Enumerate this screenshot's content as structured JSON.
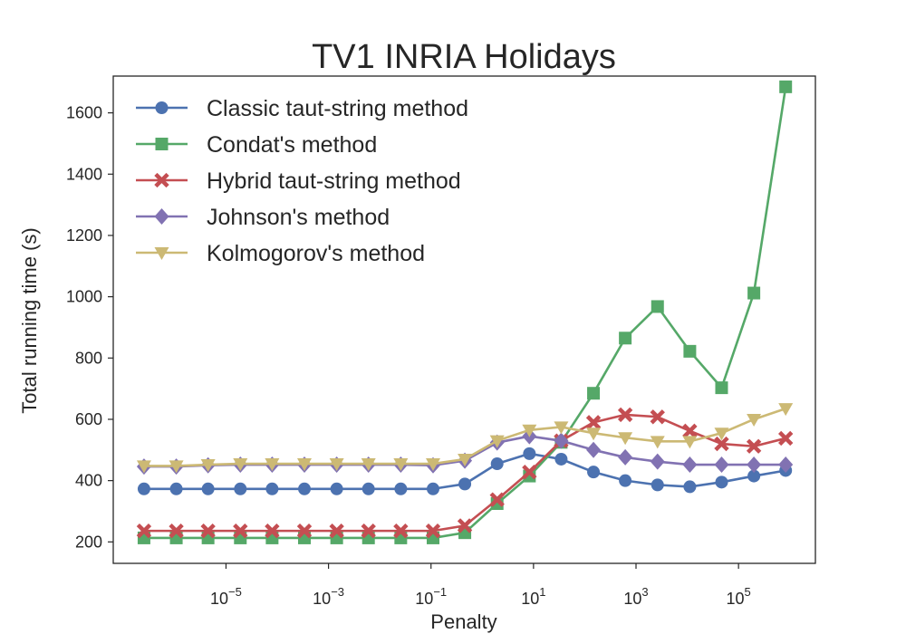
{
  "chart_data": {
    "type": "line",
    "title": "TV1 INRIA Holidays",
    "xlabel": "Penalty",
    "ylabel": "Total running time (s)",
    "xscale": "log",
    "xlim_log10": [
      -7.2,
      6.5
    ],
    "ylim": [
      130,
      1720
    ],
    "yticks": [
      200,
      400,
      600,
      800,
      1000,
      1200,
      1400,
      1600
    ],
    "xticks": [
      {
        "base": "10",
        "exp": "−5",
        "log10": -5
      },
      {
        "base": "10",
        "exp": "−3",
        "log10": -3
      },
      {
        "base": "10",
        "exp": "−1",
        "log10": -1
      },
      {
        "base": "10",
        "exp": "1",
        "log10": 1
      },
      {
        "base": "10",
        "exp": "3",
        "log10": 3
      },
      {
        "base": "10",
        "exp": "5",
        "log10": 5
      }
    ],
    "legend_position": "top-left",
    "x_log10": [
      -6.6,
      -5.97,
      -5.35,
      -4.72,
      -4.1,
      -3.47,
      -2.84,
      -2.22,
      -1.59,
      -0.96,
      -0.34,
      0.29,
      0.92,
      1.54,
      2.17,
      2.79,
      3.42,
      4.05,
      4.67,
      5.3,
      5.92
    ],
    "series": [
      {
        "name": "Classic taut-string method",
        "color": "#4c72b0",
        "marker": "circle",
        "values": [
          373,
          373,
          373,
          373,
          373,
          373,
          373,
          373,
          373,
          373,
          389,
          455,
          488,
          470,
          428,
          400,
          386,
          380,
          395,
          415,
          433
        ]
      },
      {
        "name": "Condat's method",
        "color": "#55a868",
        "marker": "square",
        "values": [
          213,
          213,
          213,
          213,
          213,
          213,
          213,
          213,
          213,
          213,
          230,
          325,
          415,
          525,
          685,
          865,
          968,
          822,
          703,
          1012,
          1685
        ]
      },
      {
        "name": "Hybrid taut-string method",
        "color": "#c44e52",
        "marker": "x",
        "values": [
          236,
          236,
          236,
          236,
          236,
          236,
          236,
          236,
          236,
          236,
          253,
          338,
          428,
          530,
          590,
          615,
          608,
          562,
          520,
          512,
          538
        ]
      },
      {
        "name": "Johnson's method",
        "color": "#8172b2",
        "marker": "diamond",
        "values": [
          446,
          446,
          450,
          452,
          452,
          452,
          452,
          452,
          452,
          450,
          465,
          524,
          545,
          530,
          500,
          476,
          462,
          452,
          452,
          452,
          452
        ]
      },
      {
        "name": "Kolmogorov's method",
        "color": "#ccb974",
        "marker": "triangle-down",
        "values": [
          448,
          448,
          452,
          455,
          455,
          455,
          455,
          455,
          455,
          455,
          470,
          530,
          565,
          575,
          555,
          540,
          528,
          528,
          555,
          600,
          635
        ]
      }
    ]
  }
}
